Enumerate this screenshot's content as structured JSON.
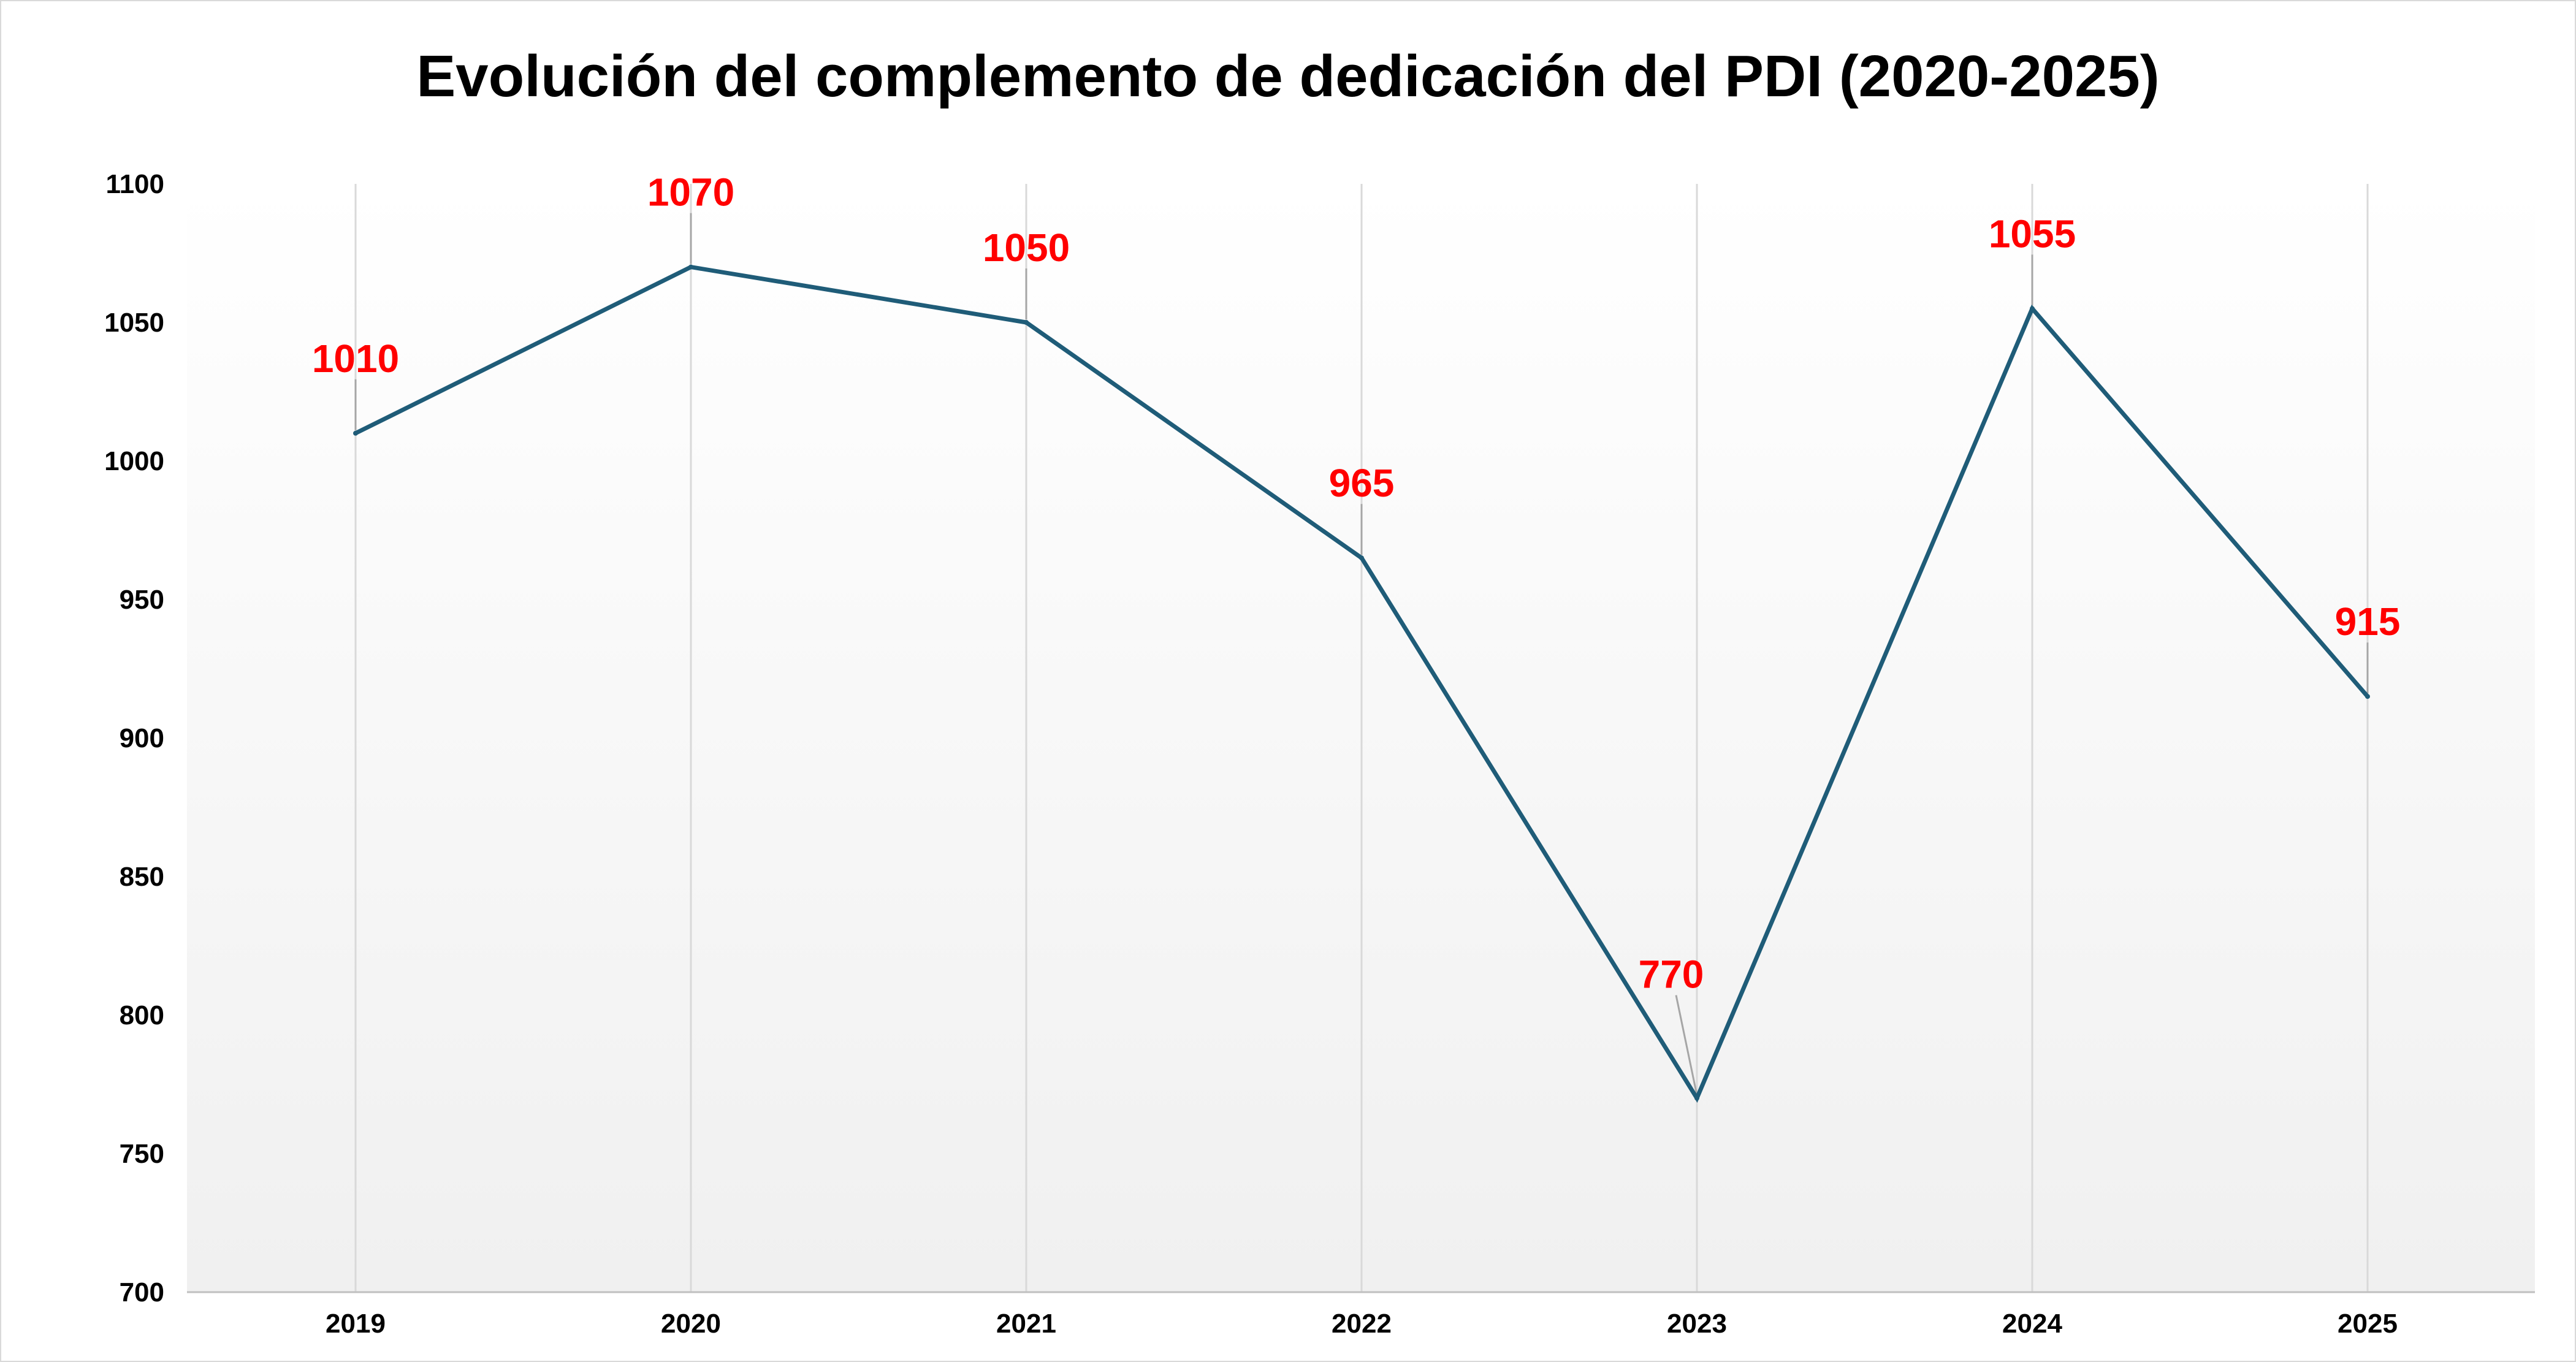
{
  "chart_data": {
    "type": "line",
    "title": "Evolución del complemento de dedicación del PDI (2020-2025)",
    "xlabel": "",
    "ylabel": "",
    "categories": [
      "2019",
      "2020",
      "2021",
      "2022",
      "2023",
      "2024",
      "2025"
    ],
    "series": [
      {
        "values": [
          1010,
          1070,
          1050,
          965,
          770,
          1055,
          915
        ]
      }
    ],
    "data_labels": [
      "1010",
      "1070",
      "1050",
      "965",
      "770",
      "1055",
      "915"
    ],
    "ylim": [
      700,
      1100
    ],
    "yticks": [
      700,
      750,
      800,
      850,
      900,
      950,
      1000,
      1050,
      1100
    ],
    "ytick_labels": [
      "700",
      "750",
      "800",
      "850",
      "900",
      "950",
      "1000",
      "1050",
      "1100"
    ],
    "grid": "vertical",
    "legend": "none",
    "colors": {
      "line": "#1f5c78",
      "data_label": "#ff0000",
      "gridline": "#d9d9d9",
      "leader": "#a6a6a6",
      "plot_bg_top": "#ffffff",
      "plot_bg_bottom": "#f0f0f0"
    }
  }
}
